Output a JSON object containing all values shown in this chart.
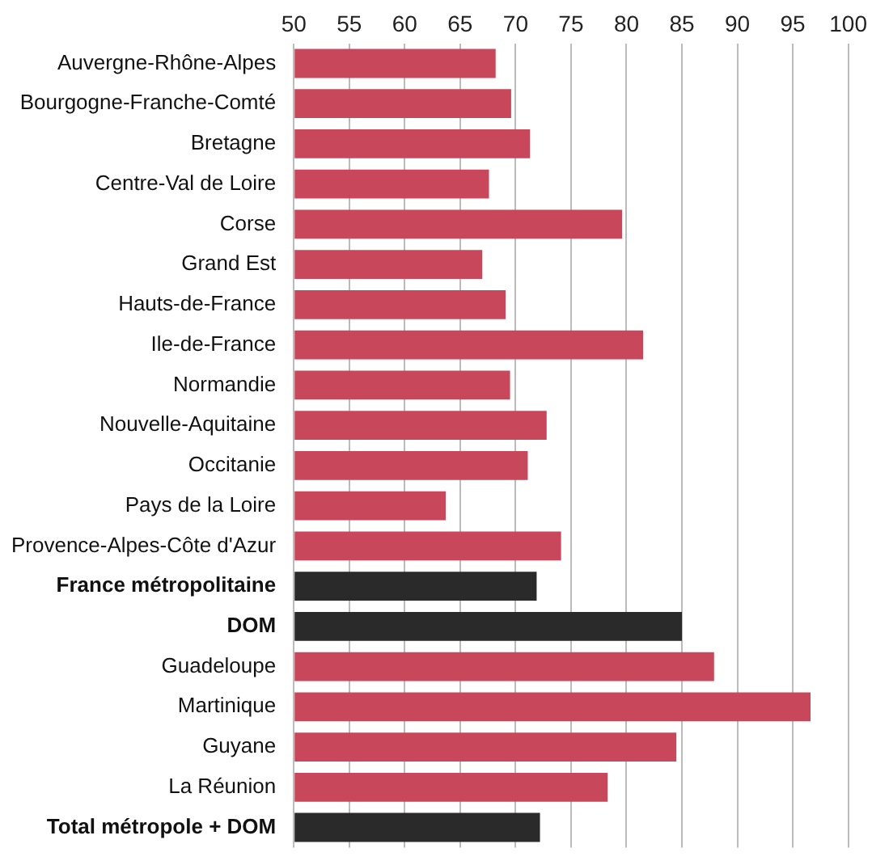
{
  "chart_data": {
    "type": "bar",
    "orientation": "horizontal",
    "categories": [
      "Auvergne-Rhône-Alpes",
      "Bourgogne-Franche-Comté",
      "Bretagne",
      "Centre-Val de Loire",
      "Corse",
      "Grand Est",
      "Hauts-de-France",
      "Ile-de-France",
      "Normandie",
      "Nouvelle-Aquitaine",
      "Occitanie",
      "Pays de la Loire",
      "Provence-Alpes-Côte d'Azur",
      "France métropolitaine",
      "DOM",
      "Guadeloupe",
      "Martinique",
      "Guyane",
      "La Réunion",
      "Total métropole + DOM"
    ],
    "values": [
      68.2,
      69.6,
      71.3,
      67.6,
      79.6,
      67.0,
      69.1,
      81.5,
      69.5,
      72.8,
      71.1,
      63.7,
      74.1,
      71.9,
      85.0,
      87.9,
      96.6,
      84.5,
      78.3,
      72.2
    ],
    "colors": [
      "#c8475a",
      "#c8475a",
      "#c8475a",
      "#c8475a",
      "#c8475a",
      "#c8475a",
      "#c8475a",
      "#c8475a",
      "#c8475a",
      "#c8475a",
      "#c8475a",
      "#c8475a",
      "#c8475a",
      "#2a2a2a",
      "#2a2a2a",
      "#c8475a",
      "#c8475a",
      "#c8475a",
      "#c8475a",
      "#2a2a2a"
    ],
    "xlim": [
      50,
      100
    ],
    "xticks": [
      50,
      55,
      60,
      65,
      70,
      75,
      80,
      85,
      90,
      95,
      100
    ],
    "grid": "x"
  }
}
